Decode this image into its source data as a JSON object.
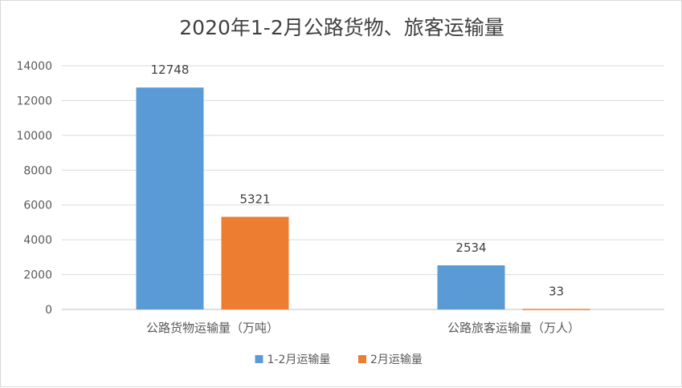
{
  "chart_data": {
    "type": "bar",
    "title": "2020年1-2月公路货物、旅客运输量",
    "xlabel": "",
    "ylabel": "",
    "categories": [
      "公路货物运输量（万吨）",
      "公路旅客运输量（万人）"
    ],
    "series": [
      {
        "name": "1-2月运输量",
        "values": [
          12748,
          2534
        ],
        "color": "#5b9bd5"
      },
      {
        "name": "2月运输量",
        "values": [
          5321,
          33
        ],
        "color": "#ed7d31"
      }
    ],
    "ylim": [
      0,
      14000
    ],
    "yticks": [
      "0",
      "2000",
      "4000",
      "6000",
      "8000",
      "10000",
      "12000",
      "14000"
    ],
    "data_labels": [
      [
        "12748",
        "2534"
      ],
      [
        "5321",
        "33"
      ]
    ],
    "grid": true,
    "legend_position": "bottom"
  }
}
